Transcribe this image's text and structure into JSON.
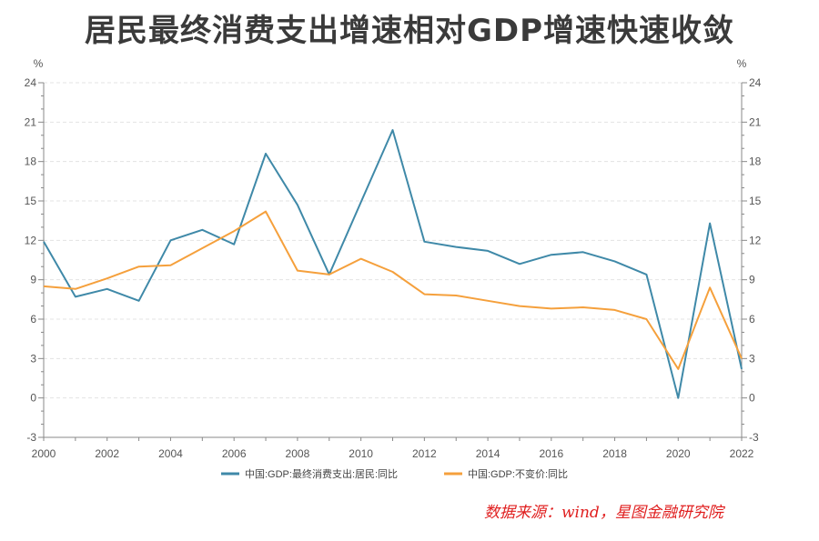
{
  "title": "居民最终消费支出增速相对GDP增速快速收敛",
  "source": "数据来源：wind，星图金融研究院",
  "chart_data": {
    "type": "line",
    "y_unit_left": "%",
    "y_unit_right": "%",
    "ylim": [
      -3,
      24
    ],
    "yticks": [
      -3,
      0,
      3,
      6,
      9,
      12,
      15,
      18,
      21,
      24
    ],
    "xlim": [
      2000,
      2022
    ],
    "xticks": [
      2000,
      2002,
      2004,
      2006,
      2008,
      2010,
      2012,
      2014,
      2016,
      2018,
      2020,
      2022
    ],
    "grid": true,
    "legend_position": "bottom",
    "x": [
      2000,
      2001,
      2002,
      2003,
      2004,
      2005,
      2006,
      2007,
      2008,
      2009,
      2010,
      2011,
      2012,
      2013,
      2014,
      2015,
      2016,
      2017,
      2018,
      2019,
      2020,
      2021,
      2022
    ],
    "series": [
      {
        "name": "中国:GDP:最终消费支出:居民:同比",
        "color": "#3f89a8",
        "values": [
          11.9,
          7.7,
          8.3,
          7.4,
          12.0,
          12.8,
          11.7,
          18.6,
          14.7,
          9.4,
          14.9,
          20.4,
          11.9,
          11.5,
          11.2,
          10.2,
          10.9,
          11.1,
          10.4,
          9.4,
          0.0,
          13.3,
          2.2
        ]
      },
      {
        "name": "中国:GDP:不变价:同比",
        "color": "#f5a03c",
        "values": [
          8.5,
          8.3,
          9.1,
          10.0,
          10.1,
          11.4,
          12.7,
          14.2,
          9.7,
          9.4,
          10.6,
          9.6,
          7.9,
          7.8,
          7.4,
          7.0,
          6.8,
          6.9,
          6.7,
          6.0,
          2.2,
          8.4,
          3.0
        ]
      }
    ]
  }
}
